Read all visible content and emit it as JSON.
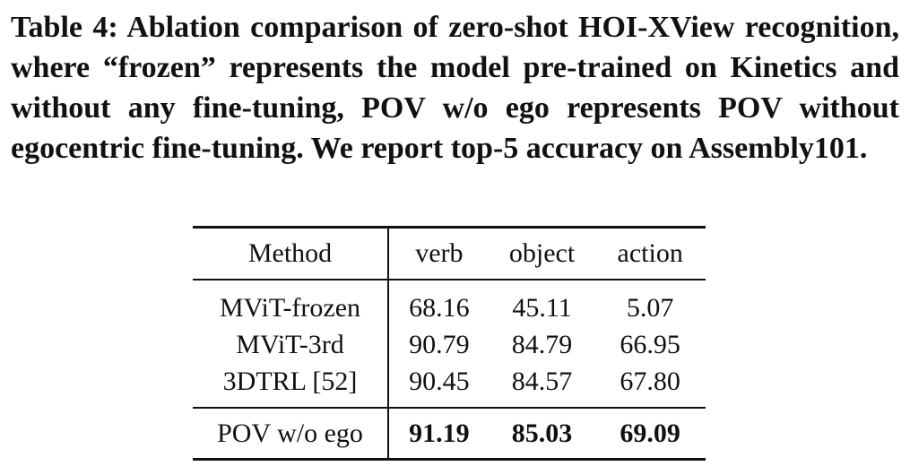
{
  "caption": "Table 4: Ablation comparison of zero-shot HOI-XView recognition, where “frozen” represents the model pre-trained on Kinetics and without any fine-tuning, POV w/o ego represents POV without egocentric fine-tuning. We report top-5 accuracy on Assembly101.",
  "table": {
    "headers": {
      "method": "Method",
      "verb": "verb",
      "object": "object",
      "action": "action"
    },
    "rows": [
      {
        "method": "MViT-frozen",
        "verb": "68.16",
        "object": "45.11",
        "action": "5.07"
      },
      {
        "method": "MViT-3rd",
        "verb": "90.79",
        "object": "84.79",
        "action": "66.95"
      },
      {
        "method": "3DTRL [52]",
        "verb": "90.45",
        "object": "84.57",
        "action": "67.80"
      }
    ],
    "final_row": {
      "method": "POV w/o ego",
      "verb": "91.19",
      "object": "85.03",
      "action": "69.09"
    }
  }
}
